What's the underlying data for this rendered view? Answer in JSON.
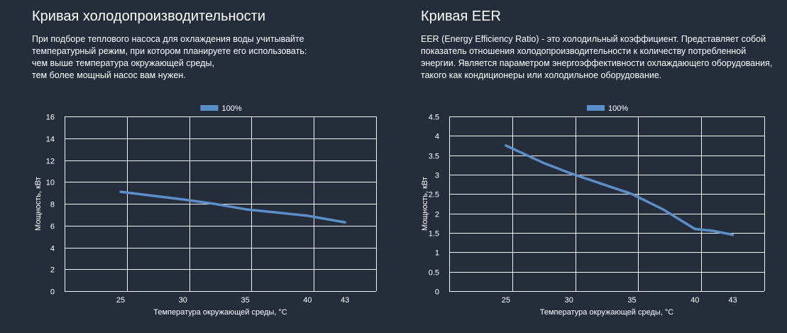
{
  "left": {
    "title": "Кривая холодопроизводительности",
    "description": [
      "При подборе теплового насоса для охлаждения воды учитывайте",
      "температурный режим, при котором планируете его использовать:",
      "чем выше температура окружающей среды,",
      "тем более мощный насос вам нужен."
    ]
  },
  "right": {
    "title": "Кривая EER",
    "description": [
      "EER (Energy Efficiency Ratio) - это холодильный коэффициент. Представляет собой",
      "показатель отношения холодопроизводительности к количеству потребленной",
      "энергии. Является параметром энергоэффективности охлаждающего оборудования,",
      "такого как кондиционеры или холодильное оборудование."
    ]
  },
  "colors": {
    "background": "#252d3b",
    "series": "#5b8fc9",
    "grid": "#ffffff"
  },
  "chart_data": [
    {
      "type": "line",
      "legend": "100%",
      "legend_position": "top-center",
      "xlabel": "Температура окружающей среды, °C",
      "ylabel": "Мощность, кВт",
      "categories": [
        "25",
        "30",
        "35",
        "40",
        "43"
      ],
      "x_tick_values": [
        25,
        30,
        35,
        40,
        43
      ],
      "xlim": [
        20.5,
        45.5
      ],
      "ylim": [
        0,
        16
      ],
      "y_ticks": [
        0,
        2,
        4,
        6,
        8,
        10,
        12,
        14,
        16
      ],
      "y_tick_labels": [
        "0",
        "2",
        "4",
        "6",
        "8",
        "10",
        "12",
        "14",
        "16"
      ],
      "x_grid": [
        20.5,
        25.5,
        30.5,
        35.5,
        40.5,
        45.5
      ],
      "series": [
        {
          "name": "100%",
          "x": [
            25,
            30,
            32.5,
            35,
            40,
            43
          ],
          "values": [
            9.1,
            8.4,
            8.0,
            7.5,
            6.9,
            6.3
          ]
        }
      ]
    },
    {
      "type": "line",
      "legend": "100%",
      "legend_position": "top-center",
      "xlabel": "Температура окружающей среды, °C",
      "ylabel": "Мощность, кВт",
      "categories": [
        "25",
        "30",
        "35",
        "40",
        "43"
      ],
      "x_tick_values": [
        25,
        30,
        35,
        40,
        43
      ],
      "xlim": [
        20.5,
        45.5
      ],
      "ylim": [
        0,
        4.5
      ],
      "y_ticks": [
        0,
        0.5,
        1,
        1.5,
        2,
        2.5,
        3,
        3.5,
        4,
        4.5
      ],
      "y_tick_labels": [
        "0",
        "0.5",
        "1",
        "1.5",
        "2",
        "2.5",
        "3",
        "3.5",
        "4",
        "4.5"
      ],
      "x_grid": [
        20.5,
        25.5,
        30.5,
        35.5,
        40.5,
        45.5
      ],
      "series": [
        {
          "name": "100%",
          "x": [
            25,
            28,
            30,
            35,
            37.5,
            40,
            41.5,
            43
          ],
          "values": [
            3.75,
            3.3,
            3.05,
            2.5,
            2.1,
            1.6,
            1.55,
            1.45
          ]
        }
      ]
    }
  ]
}
